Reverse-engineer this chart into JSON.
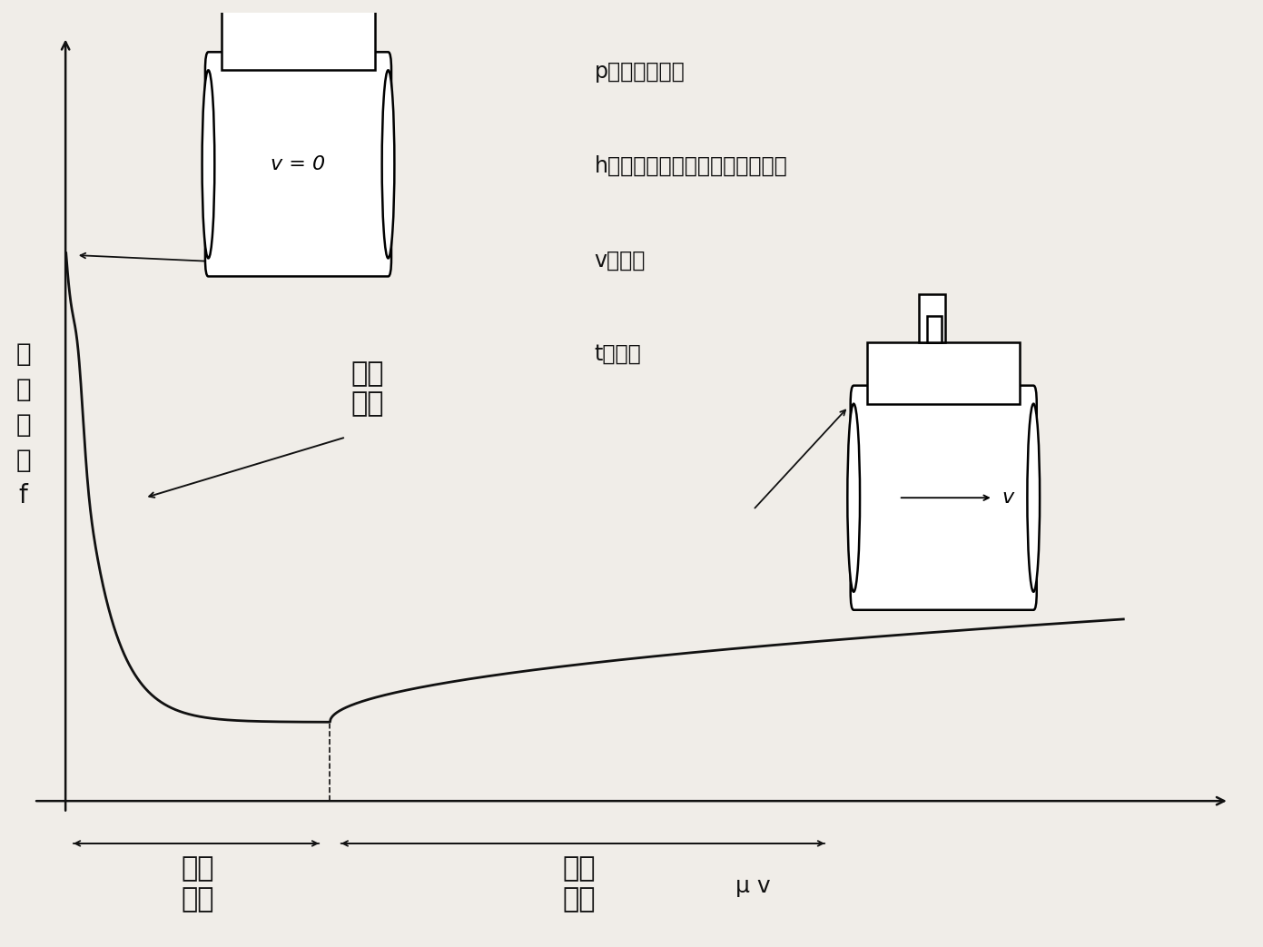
{
  "background_color": "#f0ede8",
  "curve_color": "#111111",
  "axis_color": "#111111",
  "text_color": "#111111",
  "ylabel": "摩\n擦\n係\n数\nf",
  "xlabel": "μ v",
  "legend_p": "p：流体の圧力",
  "legend_h": "h：油膜の厚さ（二面間の隙間）",
  "legend_v": "v：速度",
  "legend_t": "t：時間",
  "label_kyokai": "境界\n潤滑",
  "label_kongo": "混合\n潤滑",
  "label_ryutai": "流体\n潤滑",
  "label_v0": "v = 0",
  "label_v": "v",
  "font_size_ylabel": 20,
  "font_size_xlabel": 18,
  "font_size_legend": 17,
  "font_size_region": 22,
  "font_size_diagram": 16
}
